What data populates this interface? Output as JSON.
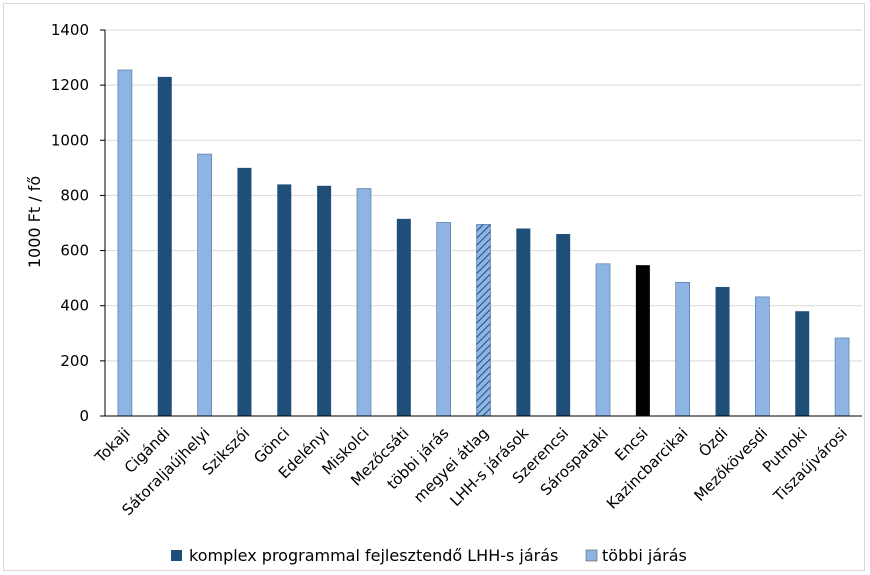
{
  "chart_data": {
    "type": "bar",
    "ylabel": "1000 Ft / fő",
    "ylim": [
      0,
      1400
    ],
    "yticks": [
      0,
      200,
      400,
      600,
      800,
      1000,
      1200,
      1400
    ],
    "grid": true,
    "legend_position": "bottom",
    "categories": [
      "Tokaji",
      "Cigándi",
      "Sátoraljaújhelyi",
      "Szikszói",
      "Gönci",
      "Edelényi",
      "Miskolci",
      "Mezőcsáti",
      "többi járás",
      "megyei átlag",
      "LHH-s járások",
      "Szerencsi",
      "Sárospataki",
      "Encsi",
      "Kazincbarcikai",
      "Ózdi",
      "Mezőkövesdi",
      "Putnoki",
      "Tiszaújvárosi"
    ],
    "values": [
      1255,
      1230,
      950,
      900,
      840,
      835,
      825,
      715,
      702,
      695,
      680,
      660,
      552,
      547,
      485,
      468,
      432,
      380,
      283
    ],
    "bar_styles": [
      "light",
      "dark",
      "light",
      "dark",
      "dark",
      "dark",
      "light",
      "dark",
      "light",
      "hatched",
      "dark",
      "dark",
      "light",
      "black",
      "light",
      "dark",
      "light",
      "dark",
      "light"
    ],
    "series": [
      {
        "name": "komplex programmal fejlesztendő LHH-s járás",
        "color": "#1f4e79"
      },
      {
        "name": "többi járás",
        "color": "#8eb4e3"
      }
    ],
    "colors": {
      "dark": "#1f4e79",
      "light": "#8eb4e3",
      "black": "#000000",
      "hatch_bg": "#8eb4e3",
      "hatch_line": "#1f4e79",
      "grid": "#d9d9d9",
      "axis": "#000000"
    }
  }
}
